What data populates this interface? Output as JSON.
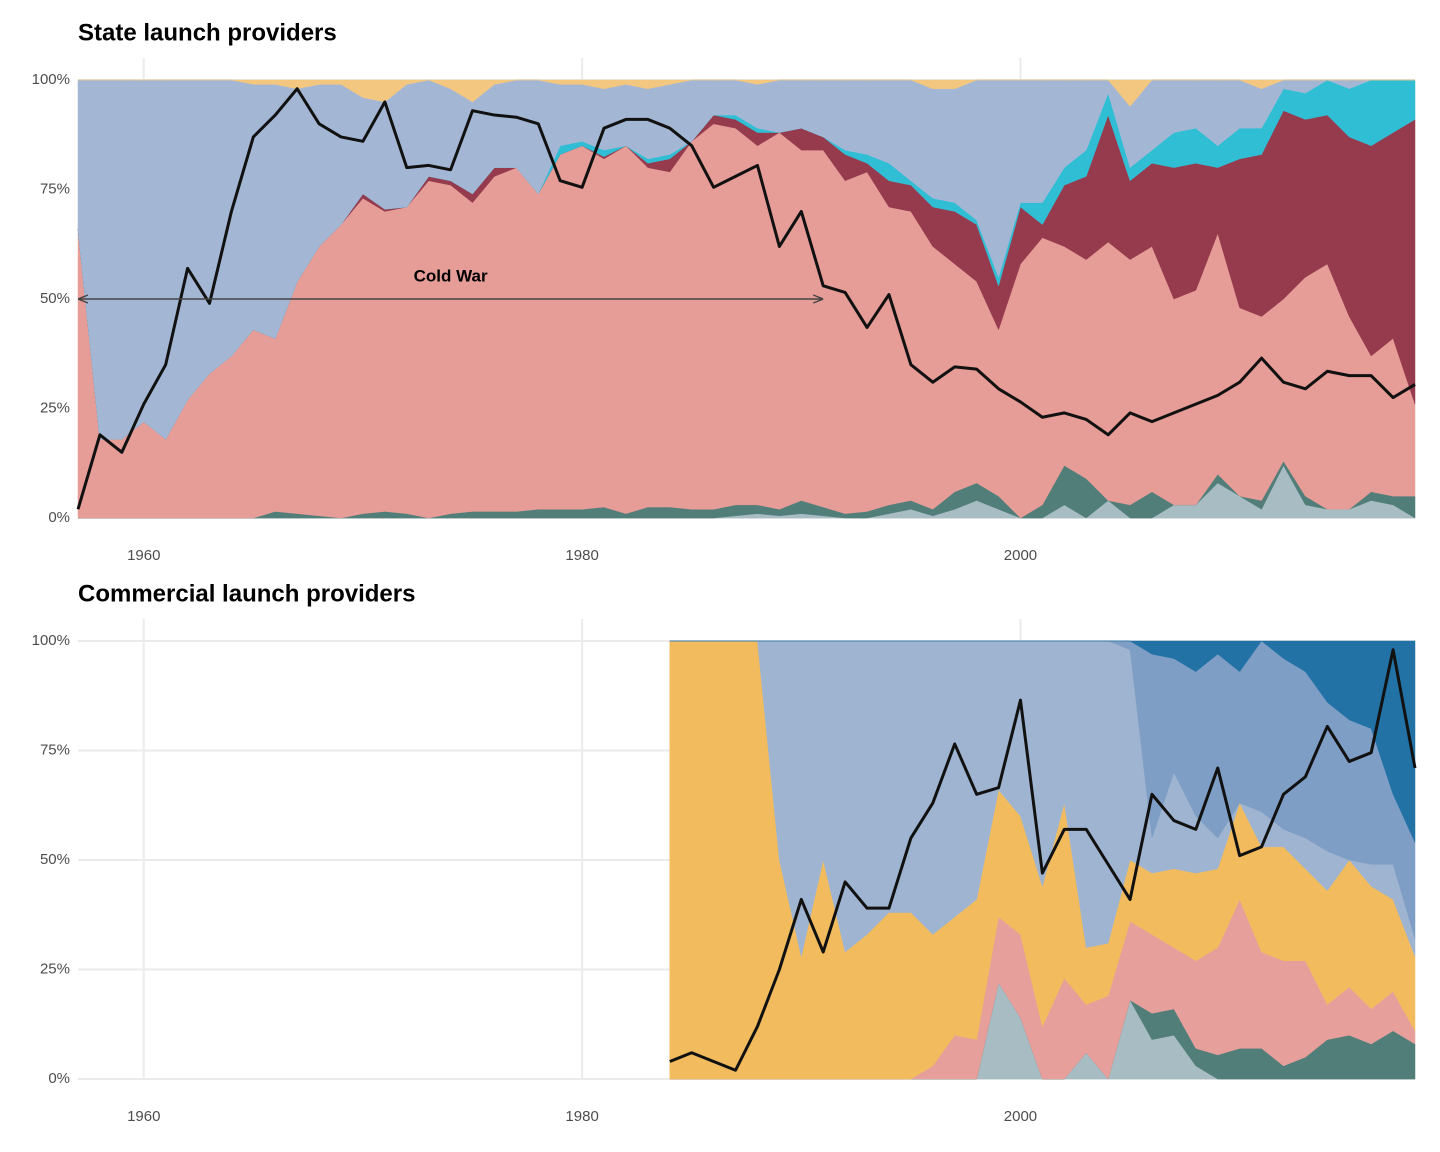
{
  "chart_data": [
    {
      "type": "area",
      "stacked": true,
      "title": "State launch providers",
      "x": [
        1957,
        1958,
        1959,
        1960,
        1961,
        1962,
        1963,
        1964,
        1965,
        1966,
        1967,
        1968,
        1969,
        1970,
        1971,
        1972,
        1973,
        1974,
        1975,
        1976,
        1977,
        1978,
        1979,
        1980,
        1981,
        1982,
        1983,
        1984,
        1985,
        1986,
        1987,
        1988,
        1989,
        1990,
        1991,
        1992,
        1993,
        1994,
        1995,
        1996,
        1997,
        1998,
        1999,
        2000,
        2001,
        2002,
        2003,
        2004,
        2005,
        2006,
        2007,
        2008,
        2009,
        2010,
        2011,
        2012,
        2013,
        2014,
        2015,
        2016,
        2017,
        2018
      ],
      "xlim": [
        1957,
        2018
      ],
      "xticks": [
        1960,
        1980,
        2000
      ],
      "ylim": [
        0,
        100
      ],
      "yticks": [
        {
          "value": 0,
          "label": "0%"
        },
        {
          "value": 25,
          "label": "25%"
        },
        {
          "value": 50,
          "label": "50%"
        },
        {
          "value": 75,
          "label": "75%"
        },
        {
          "value": 100,
          "label": "100%"
        }
      ],
      "grid": true,
      "series": [
        {
          "color": "#a7bcc3",
          "values": [
            0,
            0,
            0,
            0,
            0,
            0,
            0,
            0,
            0,
            0,
            0,
            0,
            0,
            0,
            0,
            0,
            0,
            0,
            0,
            0,
            0,
            0,
            0,
            0,
            0,
            0,
            0,
            0,
            0,
            0,
            0.5,
            1,
            0.5,
            1,
            0.5,
            0,
            0,
            1,
            2,
            0.5,
            2,
            4,
            2,
            0,
            0,
            3,
            0,
            4,
            0,
            0,
            3,
            3,
            8,
            5,
            2,
            12,
            3,
            2,
            2,
            4,
            3,
            0
          ]
        },
        {
          "color": "#527e79",
          "values": [
            0,
            0,
            0,
            0,
            0,
            0,
            0,
            0,
            0,
            1.5,
            1,
            0.5,
            0,
            1,
            1.5,
            1,
            0,
            1,
            1.5,
            1.5,
            1.5,
            2,
            2,
            2,
            2.5,
            1,
            2.5,
            2.5,
            2,
            2,
            2.5,
            2,
            1.5,
            3,
            2,
            1,
            1.5,
            2,
            2,
            1.5,
            4,
            4,
            3,
            0,
            3,
            9,
            9,
            0,
            3,
            6,
            0,
            0,
            2,
            0,
            2,
            1,
            2,
            0,
            0,
            2,
            2,
            5
          ]
        },
        {
          "color": "#e69c97",
          "values": [
            66,
            18,
            18,
            22,
            18,
            27,
            33,
            37,
            43,
            39.5,
            53,
            61.5,
            67,
            72,
            68.5,
            70,
            77,
            75,
            70.5,
            76.5,
            78.5,
            72,
            81,
            83,
            79.5,
            84,
            77.5,
            76.5,
            84,
            88,
            86,
            82,
            86,
            80,
            81.5,
            76,
            77.5,
            68,
            66,
            60,
            52,
            46,
            38,
            58,
            61,
            50,
            50,
            59,
            56,
            56,
            47,
            49,
            55,
            43,
            42,
            37,
            50,
            56,
            44,
            31,
            36,
            21
          ]
        },
        {
          "color": "#963a4d",
          "values": [
            0,
            0,
            0,
            0,
            0,
            0,
            0,
            0,
            0,
            0,
            0,
            0,
            0,
            1,
            0.5,
            0,
            1,
            1,
            2,
            2,
            0,
            0,
            0,
            0,
            0.5,
            0,
            1,
            3,
            0,
            2,
            2,
            3,
            0,
            5,
            3,
            6,
            2,
            6,
            6,
            9,
            12,
            13,
            10,
            13,
            3,
            14,
            19,
            29,
            18,
            19,
            30,
            29,
            15,
            34,
            37,
            43,
            36,
            34,
            41,
            48,
            47,
            65
          ]
        },
        {
          "color": "#30bed5",
          "values": [
            0,
            0,
            0,
            0,
            0,
            0,
            0,
            0,
            0,
            0,
            0,
            0,
            0,
            0,
            0,
            0,
            0,
            0,
            0,
            0,
            0,
            0,
            2,
            1,
            1.5,
            0,
            1,
            1,
            0,
            0,
            1,
            1,
            0,
            0,
            0,
            1,
            2,
            4,
            1,
            2,
            2,
            1,
            2,
            1,
            5,
            4,
            6,
            5,
            3,
            3,
            8,
            8,
            5,
            7,
            6,
            5,
            6,
            8,
            11,
            15,
            12,
            9
          ]
        },
        {
          "color": "#a3b7d5",
          "values": [
            34,
            82,
            82,
            78,
            82,
            73,
            67,
            63,
            56,
            58,
            44,
            37,
            32,
            22,
            24.5,
            28,
            22,
            21,
            21,
            19,
            20,
            26,
            14,
            13,
            14,
            14,
            16,
            16,
            14,
            8,
            8,
            10,
            12,
            11,
            13,
            16,
            17,
            19,
            23,
            25,
            26,
            32,
            45,
            28,
            28,
            20,
            16,
            3,
            14,
            16,
            12,
            11,
            15,
            11,
            9,
            2,
            3,
            0,
            2,
            0,
            0,
            0
          ]
        },
        {
          "color": "#f3c77f",
          "values": [
            0,
            0,
            0,
            0,
            0,
            0,
            0,
            0,
            1,
            1,
            2,
            1,
            1,
            4,
            5,
            1,
            0,
            2,
            5,
            1,
            0,
            0,
            1,
            1,
            2,
            1,
            2,
            1,
            0,
            0,
            0,
            1,
            0,
            0,
            0,
            0,
            0,
            0,
            0,
            2,
            2,
            0,
            0,
            0,
            0,
            0,
            0,
            0,
            6,
            0,
            0,
            0,
            0,
            0,
            2,
            0,
            0,
            0,
            0,
            0,
            0,
            0
          ]
        },
        {
          "type": "line",
          "color": "#111111",
          "values": [
            2,
            19,
            15,
            26,
            35,
            57,
            49,
            70,
            87,
            92,
            98,
            90,
            87,
            86,
            95,
            80,
            80.5,
            79.5,
            93,
            92,
            91.5,
            90,
            77,
            75.5,
            89,
            91,
            91,
            89,
            85,
            75.5,
            78,
            80.5,
            62,
            70,
            53,
            51.5,
            43.5,
            51,
            35,
            31,
            34.5,
            34,
            29.5,
            26.5,
            23,
            24,
            22.5,
            19,
            24,
            22,
            24,
            26,
            28,
            31,
            36.5,
            31,
            29.5,
            33.5,
            32.5,
            32.5,
            27.5,
            30.5
          ]
        }
      ],
      "annotation": {
        "text": "Cold War",
        "from": 1957,
        "to": 1991,
        "y": 50
      }
    },
    {
      "type": "area",
      "stacked": true,
      "title": "Commercial launch providers",
      "x": [
        1984,
        1985,
        1986,
        1987,
        1988,
        1989,
        1990,
        1991,
        1992,
        1993,
        1994,
        1995,
        1996,
        1997,
        1998,
        1999,
        2000,
        2001,
        2002,
        2003,
        2004,
        2005,
        2006,
        2007,
        2008,
        2009,
        2010,
        2011,
        2012,
        2013,
        2014,
        2015,
        2016,
        2017,
        2018
      ],
      "xlim": [
        1957,
        2018
      ],
      "xticks": [
        1960,
        1980,
        2000
      ],
      "ylim": [
        0,
        100
      ],
      "yticks": [
        {
          "value": 0,
          "label": "0%"
        },
        {
          "value": 25,
          "label": "25%"
        },
        {
          "value": 50,
          "label": "50%"
        },
        {
          "value": 75,
          "label": "75%"
        },
        {
          "value": 100,
          "label": "100%"
        }
      ],
      "grid": true,
      "series": [
        {
          "color": "#a7bcc3",
          "values": [
            0,
            0,
            0,
            0,
            0,
            0,
            0,
            0,
            0,
            0,
            0,
            0,
            0,
            0,
            0,
            22,
            14,
            0,
            0,
            6,
            0,
            18,
            9,
            10,
            3,
            0,
            0,
            0,
            0,
            0,
            0,
            0,
            0,
            0,
            0
          ]
        },
        {
          "color": "#527e79",
          "values": [
            0,
            0,
            0,
            0,
            0,
            0,
            0,
            0,
            0,
            0,
            0,
            0,
            0,
            0,
            0,
            0,
            0,
            0,
            0,
            0,
            0,
            0,
            6,
            6,
            4,
            5.5,
            7,
            7,
            3,
            5,
            9,
            10,
            8,
            11,
            8
          ]
        },
        {
          "color": "#e69f9a",
          "values": [
            0,
            0,
            0,
            0,
            0,
            0,
            0,
            0,
            0,
            0,
            0,
            0,
            3,
            10,
            9,
            15,
            19,
            12,
            23,
            11,
            19,
            18,
            18,
            14,
            20,
            24.5,
            34,
            22,
            24,
            22,
            8,
            11,
            8,
            9,
            3
          ]
        },
        {
          "color": "#f2bc5e",
          "values": [
            100,
            100,
            100,
            100,
            100,
            50,
            28,
            50,
            29,
            33,
            38,
            38,
            30,
            27,
            32,
            29,
            27,
            32,
            40,
            13,
            12,
            14,
            14,
            18,
            20,
            18,
            22,
            24,
            26,
            21,
            26,
            29,
            28,
            21,
            17
          ]
        },
        {
          "color": "#9fb4d0",
          "values": [
            0,
            0,
            0,
            0,
            0,
            50,
            72,
            50,
            71,
            67,
            62,
            62,
            67,
            63,
            59,
            34,
            40,
            56,
            37,
            70,
            69,
            48,
            8,
            22,
            13,
            7,
            0,
            8,
            4,
            7,
            9,
            0,
            5,
            8,
            4
          ]
        },
        {
          "color": "#7f9ec5",
          "values": [
            0,
            0,
            0,
            0,
            0,
            0,
            0,
            0,
            0,
            0,
            0,
            0,
            0,
            0,
            0,
            0,
            0,
            0,
            0,
            0,
            0,
            2,
            42,
            26,
            33,
            42,
            30,
            39,
            39,
            38,
            34,
            32,
            31,
            16,
            22
          ]
        },
        {
          "color": "#2272a6",
          "values": [
            0,
            0,
            0,
            0,
            0,
            0,
            0,
            0,
            0,
            0,
            0,
            0,
            0,
            0,
            0,
            0,
            0,
            0,
            0,
            0,
            0,
            0,
            3,
            4,
            7,
            3,
            7,
            0,
            4,
            7,
            14,
            18,
            20,
            35,
            46
          ]
        },
        {
          "type": "line",
          "color": "#111111",
          "values": [
            4,
            6,
            4,
            2,
            12,
            25,
            41,
            29,
            45,
            39,
            39,
            55,
            63,
            76.5,
            65,
            66.5,
            86.5,
            47,
            57,
            57,
            49,
            41,
            65,
            59,
            57,
            71,
            51,
            53,
            65,
            69,
            80.5,
            72.5,
            74.5,
            98,
            71
          ]
        }
      ]
    }
  ]
}
